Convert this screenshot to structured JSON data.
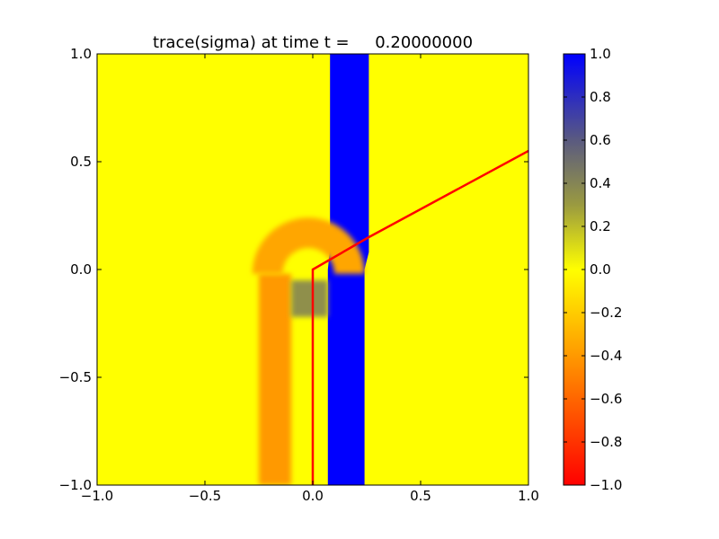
{
  "chart_data": {
    "type": "heatmap",
    "title": "trace(sigma) at time t =     0.20000000",
    "xlabel": "",
    "ylabel": "",
    "xlim": [
      -1.0,
      1.0
    ],
    "ylim": [
      -1.0,
      1.0
    ],
    "x_ticks": [
      -1.0,
      -0.5,
      0.0,
      0.5,
      1.0
    ],
    "x_tick_labels": [
      "−1.0",
      "−0.5",
      "0.0",
      "0.5",
      "1.0"
    ],
    "y_ticks": [
      -1.0,
      -0.5,
      0.0,
      0.5,
      1.0
    ],
    "y_tick_labels": [
      "−1.0",
      "−0.5",
      "0.0",
      "0.5",
      "1.0"
    ],
    "colorbar": {
      "range": [
        -1.0,
        1.0
      ],
      "ticks": [
        -1.0,
        -0.8,
        -0.6,
        -0.4,
        -0.2,
        0.0,
        0.2,
        0.4,
        0.6,
        0.8,
        1.0
      ],
      "tick_labels": [
        "−1.0",
        "−0.8",
        "−0.6",
        "−0.4",
        "−0.2",
        "0.0",
        "0.2",
        "0.4",
        "0.6",
        "0.8",
        "1.0"
      ],
      "colors": [
        {
          "value": -1.0,
          "color": "#ff0000"
        },
        {
          "value": 0.0,
          "color": "#ffff00"
        },
        {
          "value": 0.3,
          "color": "#9a9a40"
        },
        {
          "value": 0.6,
          "color": "#5a5a80"
        },
        {
          "value": 1.0,
          "color": "#0000ff"
        }
      ]
    },
    "background_value": 0.0,
    "regions": [
      {
        "name": "blue-band",
        "shape": "polygon",
        "value": 1.0,
        "points": [
          [
            0.08,
            1.0
          ],
          [
            0.26,
            1.0
          ],
          [
            0.26,
            0.08
          ],
          [
            0.24,
            0.0
          ],
          [
            0.24,
            -1.0
          ],
          [
            0.07,
            -1.0
          ],
          [
            0.07,
            0.0
          ],
          [
            0.08,
            0.1
          ]
        ]
      },
      {
        "name": "orange-column",
        "shape": "rect",
        "value": -0.4,
        "x0": -0.25,
        "x1": -0.1,
        "y0": -1.0,
        "y1": -0.02
      },
      {
        "name": "orange-arc",
        "shape": "arc",
        "value": -0.35,
        "cx": -0.02,
        "cy": -0.02,
        "r_inner": 0.12,
        "r_outer": 0.26,
        "angle_start": 0,
        "angle_end": 180
      },
      {
        "name": "gray-patch",
        "shape": "rect",
        "value": 0.35,
        "x0": -0.1,
        "x1": 0.07,
        "y0": -0.22,
        "y1": -0.05
      }
    ],
    "series": [
      {
        "x": [
          0.0,
          0.0,
          0.26,
          1.0
        ],
        "y": [
          -1.0,
          0.0,
          0.15,
          0.55
        ],
        "color": "#ff0000"
      }
    ]
  }
}
